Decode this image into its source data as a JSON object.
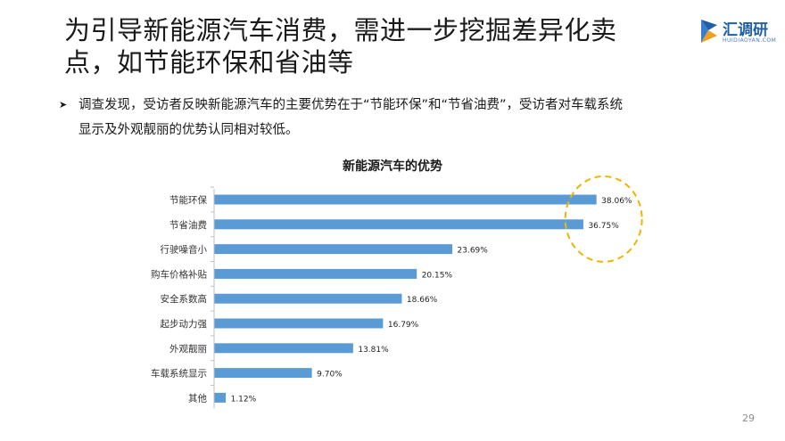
{
  "slide": {
    "title_line1": "为引导新能源汽车消费，需进一步挖掘差异化卖",
    "title_line2": "点，如节能环保和省油等",
    "bullet_line1": "调查发现，受访者反映新能源汽车的主要优势在于“节能环保”和“节省油费”，受访者对车载系统",
    "bullet_line2": "显示及外观靓丽的优势认同相对较低。",
    "page_number": "29"
  },
  "logo": {
    "name": "汇调研",
    "sub": "HUIDIAOYAN.COM",
    "colors": {
      "blue": "#1f5fa8",
      "orange": "#f0a020"
    }
  },
  "chart_data": {
    "type": "bar",
    "orientation": "horizontal",
    "title": "新能源汽车的优势",
    "categories": [
      "节能环保",
      "节省油费",
      "行驶噪音小",
      "购车价格补贴",
      "安全系数高",
      "起步动力强",
      "外观靓丽",
      "车载系统显示",
      "其他"
    ],
    "values": [
      38.06,
      36.75,
      23.69,
      20.15,
      18.66,
      16.79,
      13.81,
      9.7,
      1.12
    ],
    "data_labels": [
      "38.06%",
      "36.75%",
      "23.69%",
      "20.15%",
      "18.66%",
      "16.79%",
      "13.81%",
      "9.70%",
      "1.12%"
    ],
    "xlim": [
      0,
      40
    ],
    "grid": false,
    "legend": "none",
    "bar_color": "#5b9bd5",
    "highlight_color": "#f0b400"
  }
}
